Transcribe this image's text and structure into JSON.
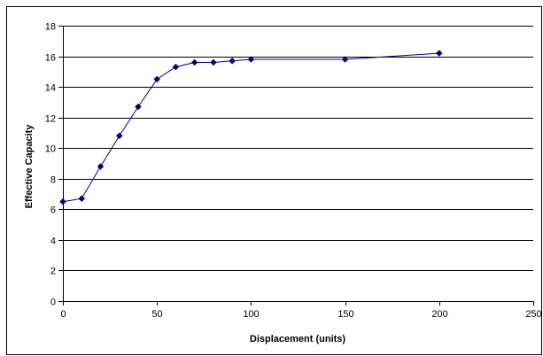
{
  "chart_data": {
    "type": "line",
    "title": "",
    "xlabel": "Displacement (units)",
    "ylabel": "Effective Capacity",
    "xlim": [
      0,
      250
    ],
    "ylim": [
      0,
      18
    ],
    "xticks": [
      0,
      50,
      100,
      150,
      200,
      250
    ],
    "yticks": [
      0,
      2,
      4,
      6,
      8,
      10,
      12,
      14,
      16,
      18
    ],
    "grid": "horizontal",
    "legend": "none",
    "marker": "diamond",
    "series": [
      {
        "x": [
          0,
          10,
          20,
          30,
          40,
          50,
          60,
          70,
          80,
          90,
          100,
          150,
          200
        ],
        "y": [
          6.5,
          6.7,
          8.8,
          10.8,
          12.7,
          14.5,
          15.3,
          15.6,
          15.6,
          15.7,
          15.8,
          15.8,
          16.2
        ]
      }
    ],
    "colors": {
      "series": "#000080",
      "grid": "#000000",
      "axis": "#000000",
      "frame": "#000000"
    }
  }
}
